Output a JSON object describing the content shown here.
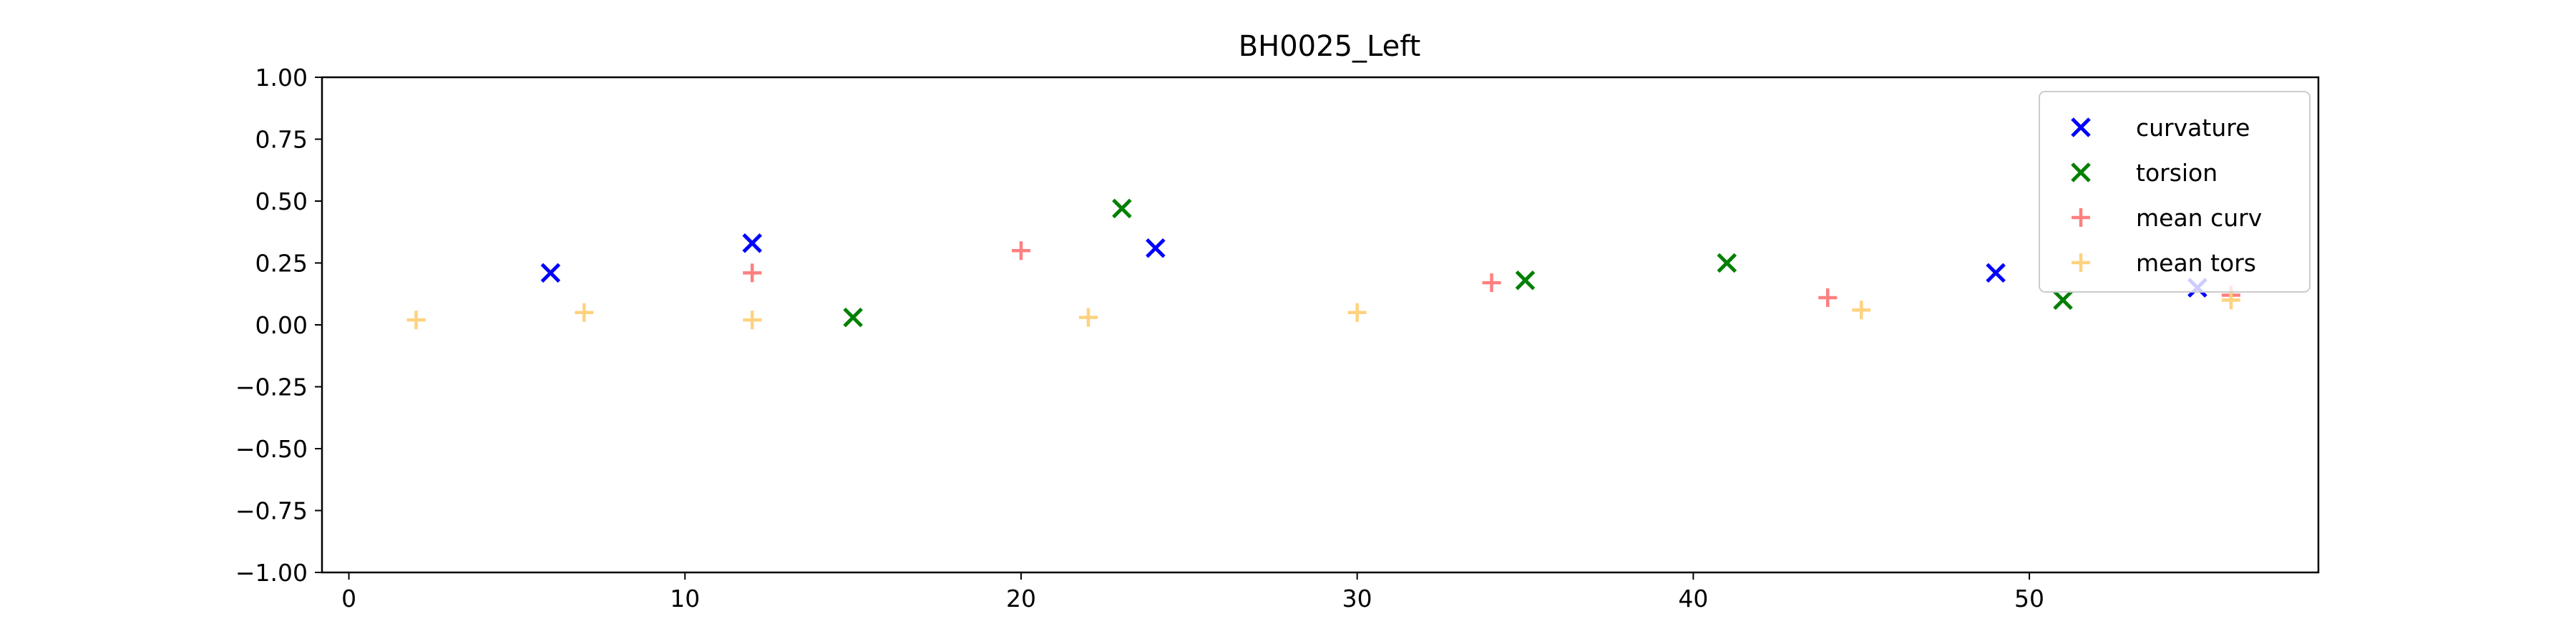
{
  "chart_data": {
    "type": "scatter",
    "title": "BH0025_Left",
    "xlabel": "",
    "ylabel": "",
    "xlim": [
      -0.8,
      58.6
    ],
    "ylim": [
      -1.0,
      1.0
    ],
    "xticks": [
      0,
      10,
      20,
      30,
      40,
      50
    ],
    "xtick_labels": [
      "0",
      "10",
      "20",
      "30",
      "40",
      "50"
    ],
    "yticks": [
      -1.0,
      -0.75,
      -0.5,
      -0.25,
      0.0,
      0.25,
      0.5,
      0.75,
      1.0
    ],
    "ytick_labels": [
      "−1.00",
      "−0.75",
      "−0.50",
      "−0.25",
      "0.00",
      "0.25",
      "0.50",
      "0.75",
      "1.00"
    ],
    "grid": false,
    "legend_position": "upper right",
    "series": [
      {
        "name": "curvature",
        "marker": "x",
        "color": "#0000ff",
        "points": [
          [
            6,
            0.21
          ],
          [
            12,
            0.33
          ],
          [
            24,
            0.31
          ],
          [
            49,
            0.21
          ],
          [
            55,
            0.15
          ]
        ]
      },
      {
        "name": "torsion",
        "marker": "x",
        "color": "#008000",
        "points": [
          [
            15,
            0.03
          ],
          [
            23,
            0.47
          ],
          [
            35,
            0.18
          ],
          [
            41,
            0.25
          ],
          [
            51,
            0.1
          ]
        ]
      },
      {
        "name": "mean curv",
        "marker": "+",
        "color": "#ff7f7f",
        "points": [
          [
            12,
            0.21
          ],
          [
            20,
            0.3
          ],
          [
            34,
            0.17
          ],
          [
            44,
            0.11
          ],
          [
            56,
            0.12
          ]
        ]
      },
      {
        "name": "mean tors",
        "marker": "+",
        "color": "#ffd27f",
        "points": [
          [
            2,
            0.02
          ],
          [
            7,
            0.05
          ],
          [
            12,
            0.02
          ],
          [
            22,
            0.03
          ],
          [
            30,
            0.05
          ],
          [
            45,
            0.06
          ],
          [
            56,
            0.1
          ]
        ]
      }
    ]
  }
}
